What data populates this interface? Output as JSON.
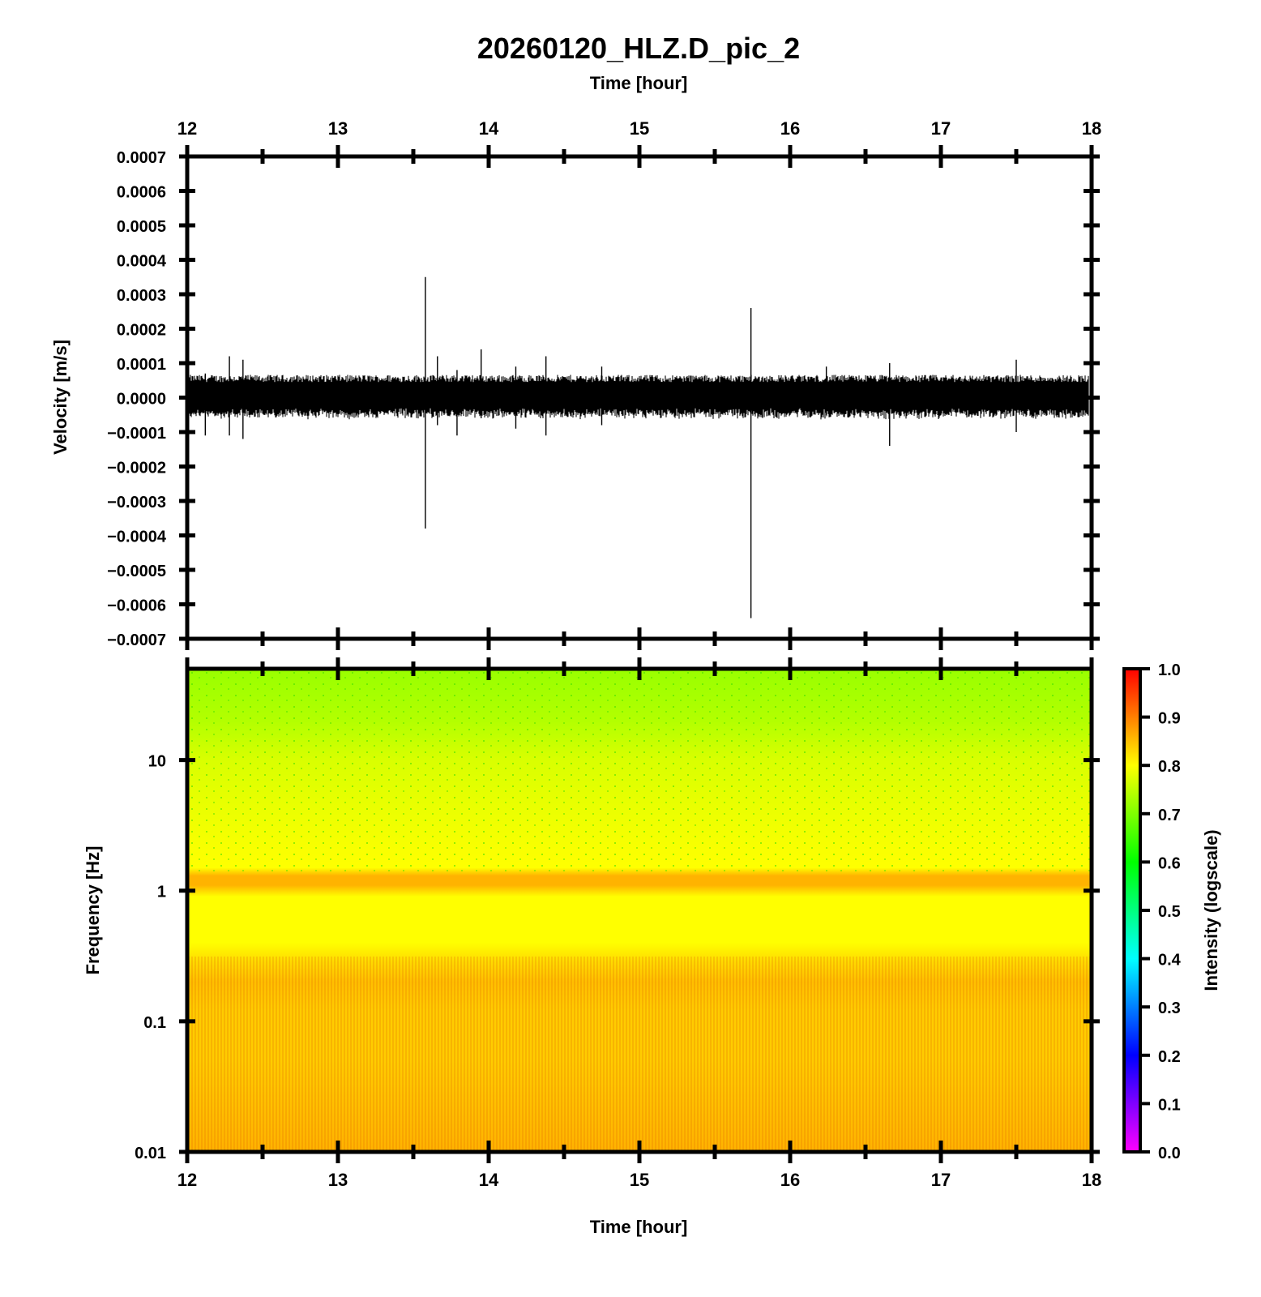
{
  "title": "20260120_HLZ.D_pic_2",
  "chart_data": [
    {
      "type": "line",
      "name": "waveform",
      "top_xlabel": "Time [hour]",
      "ylabel": "Velocity [m/s]",
      "xlim": [
        12,
        18
      ],
      "ylim": [
        -0.0007,
        0.0007
      ],
      "x_ticks": [
        "12",
        "13",
        "14",
        "15",
        "16",
        "17",
        "18"
      ],
      "y_ticks": [
        "0.0007",
        "0.0006",
        "0.0005",
        "0.0004",
        "0.0003",
        "0.0002",
        "0.0001",
        "0.0000",
        "−0.0001",
        "−0.0002",
        "−0.0003",
        "−0.0004",
        "−0.0005",
        "−0.0006",
        "−0.0007"
      ],
      "y_tick_values": [
        0.0007,
        0.0006,
        0.0005,
        0.0004,
        0.0003,
        0.0002,
        0.0001,
        0,
        -0.0001,
        -0.0002,
        -0.0003,
        -0.0004,
        -0.0005,
        -0.0006,
        -0.0007
      ],
      "noise_band": [
        -4e-05,
        6e-05
      ],
      "spikes": [
        {
          "x": 12.12,
          "max": 7e-05,
          "min": -0.00011
        },
        {
          "x": 12.28,
          "max": 0.00012,
          "min": -0.00011
        },
        {
          "x": 12.37,
          "max": 0.00011,
          "min": -0.00012
        },
        {
          "x": 13.58,
          "max": 0.00035,
          "min": -0.00038
        },
        {
          "x": 13.66,
          "max": 0.00012,
          "min": -8e-05
        },
        {
          "x": 13.79,
          "max": 8e-05,
          "min": -0.00011
        },
        {
          "x": 13.95,
          "max": 0.00014,
          "min": -6e-05
        },
        {
          "x": 14.18,
          "max": 9e-05,
          "min": -9e-05
        },
        {
          "x": 14.38,
          "max": 0.00012,
          "min": -0.00011
        },
        {
          "x": 14.75,
          "max": 9e-05,
          "min": -8e-05
        },
        {
          "x": 15.74,
          "max": 0.00026,
          "min": -0.00064
        },
        {
          "x": 16.24,
          "max": 9e-05,
          "min": -5e-05
        },
        {
          "x": 16.66,
          "max": 0.0001,
          "min": -0.00014
        },
        {
          "x": 17.5,
          "max": 0.00011,
          "min": -0.0001
        }
      ]
    },
    {
      "type": "heatmap",
      "name": "spectrogram",
      "xlabel": "Time [hour]",
      "ylabel": "Frequency [Hz]",
      "xlim": [
        12,
        18
      ],
      "ylim": [
        0.01,
        50
      ],
      "yscale": "log",
      "x_ticks": [
        "12",
        "13",
        "14",
        "15",
        "16",
        "17",
        "18"
      ],
      "y_ticks": [
        "10",
        "1",
        "0.1",
        "0.01"
      ],
      "y_tick_values": [
        10,
        1,
        0.1,
        0.01
      ],
      "colorbar": {
        "label": "Intensity (logscale)",
        "range": [
          0,
          1
        ],
        "ticks": [
          "1.0",
          "0.9",
          "0.8",
          "0.7",
          "0.6",
          "0.5",
          "0.4",
          "0.3",
          "0.2",
          "0.1",
          "0.0"
        ],
        "tick_values": [
          1,
          0.9,
          0.8,
          0.7,
          0.6,
          0.5,
          0.4,
          0.3,
          0.2,
          0.1,
          0
        ],
        "colors": [
          "#ff00ff",
          "#0000ff",
          "#00ffff",
          "#00ff00",
          "#ffff00",
          "#ff0000"
        ]
      },
      "intensity_profile": [
        {
          "freq": 50,
          "intensity": 0.72
        },
        {
          "freq": 20,
          "intensity": 0.74
        },
        {
          "freq": 10,
          "intensity": 0.77
        },
        {
          "freq": 3,
          "intensity": 0.79
        },
        {
          "freq": 1.5,
          "intensity": 0.8
        },
        {
          "freq": 1.3,
          "intensity": 0.86
        },
        {
          "freq": 1.1,
          "intensity": 0.86
        },
        {
          "freq": 0.9,
          "intensity": 0.8
        },
        {
          "freq": 0.4,
          "intensity": 0.8
        },
        {
          "freq": 0.28,
          "intensity": 0.83
        },
        {
          "freq": 0.2,
          "intensity": 0.85
        },
        {
          "freq": 0.12,
          "intensity": 0.84
        },
        {
          "freq": 0.05,
          "intensity": 0.84
        },
        {
          "freq": 0.01,
          "intensity": 0.86
        }
      ]
    }
  ]
}
